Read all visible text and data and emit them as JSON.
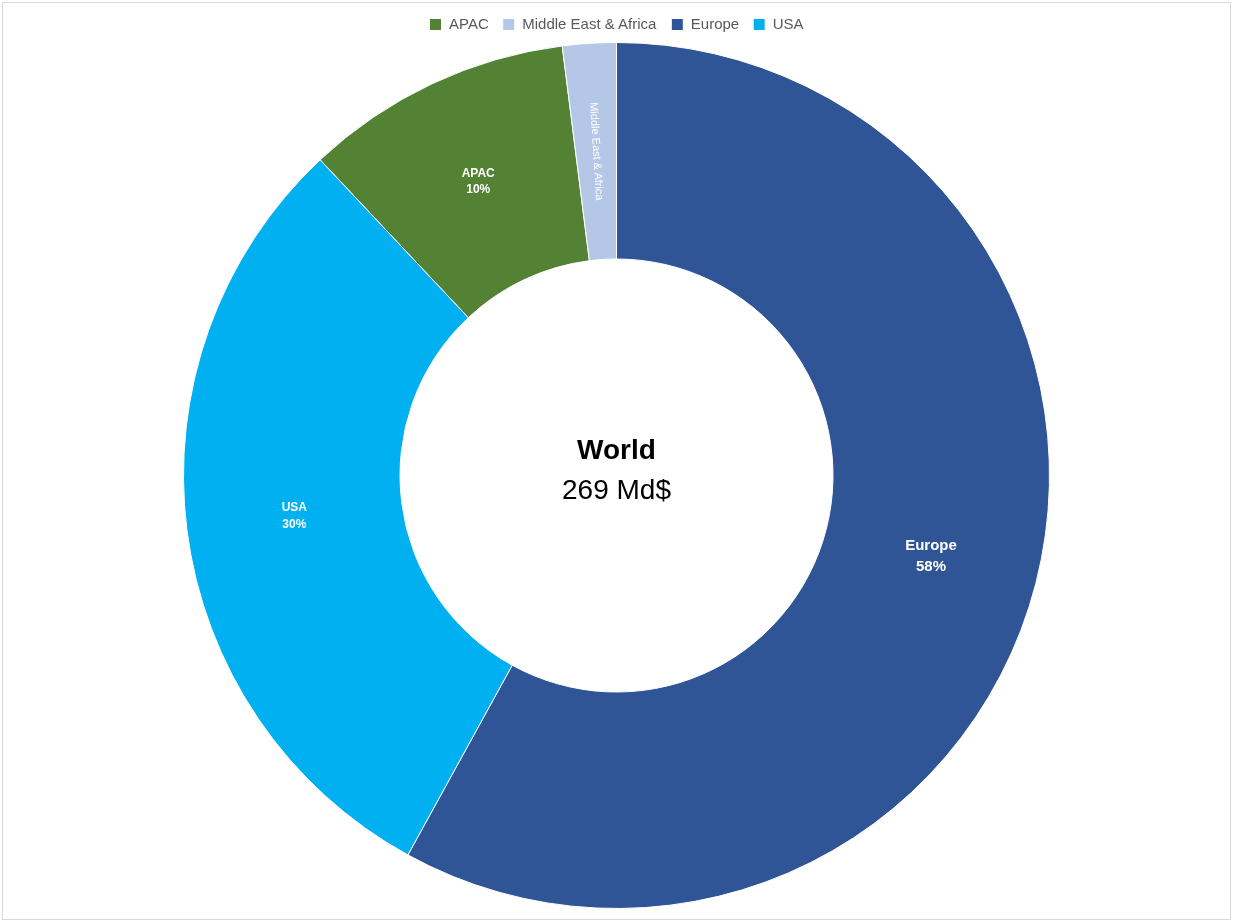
{
  "chart_data": {
    "type": "donut",
    "title": "World",
    "subtitle": "269 Md$",
    "categories": [
      "APAC",
      "Middle East & Africa",
      "Europe",
      "USA"
    ],
    "values": [
      10,
      2,
      58,
      30
    ],
    "colors": [
      "#548235",
      "#b4c7e7",
      "#2f5597",
      "#00b0f0"
    ],
    "value_labels": [
      "10%",
      null,
      "58%",
      "30%"
    ],
    "legend": "top"
  }
}
